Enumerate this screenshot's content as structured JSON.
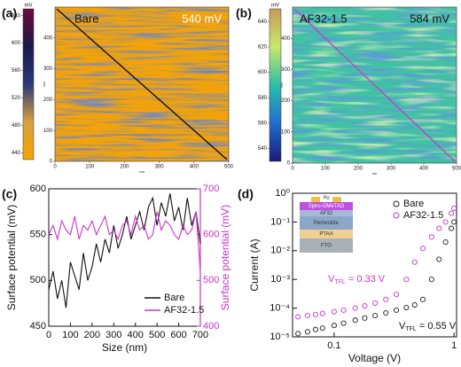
{
  "chart_data": [
    {
      "type": "image",
      "panel": "(a)",
      "label": "Bare",
      "annotation": "540 mV",
      "colorbar_label": "mV",
      "colorbar_ticks": [
        440,
        480,
        520,
        560,
        600,
        640
      ],
      "clim": [
        430,
        650
      ],
      "colormap": [
        "#f5a500",
        "#d8a040",
        "#2a3a7a",
        "#1a1a4a",
        "#6a0a3a"
      ],
      "map_color": "#f2a20a",
      "noise_color": "#2a3f8a",
      "line_color": "#111111",
      "xlim": [
        0,
        500
      ],
      "xticks": [
        0,
        100,
        200,
        300,
        400,
        500
      ],
      "ylim": [
        0,
        500
      ],
      "yticks": [
        0,
        100,
        200,
        300,
        400
      ],
      "xlabel": "nm",
      "ylabel": "nm"
    },
    {
      "type": "image",
      "panel": "(b)",
      "label": "AF32-1.5",
      "annotation": "584 mV",
      "colorbar_label": "mV",
      "colorbar_ticks": [
        540,
        560,
        580,
        600,
        620,
        640
      ],
      "clim": [
        530,
        650
      ],
      "colormap": [
        "#1a1a7a",
        "#1f6fcf",
        "#2bbfa8",
        "#c8e86a",
        "#c89a5a"
      ],
      "map_color": "#3fc4a0",
      "noise_color": "#2050c0",
      "line_color": "#c040c8",
      "xlim": [
        0,
        500
      ],
      "xticks": [
        0,
        100,
        200,
        300,
        400,
        500
      ],
      "ylim": [
        0,
        500
      ],
      "yticks": [
        0,
        100,
        200,
        300,
        400
      ],
      "xlabel": "nm",
      "ylabel": "nm"
    },
    {
      "type": "line",
      "panel": "(c)",
      "xlabel": "Size (nm)",
      "ylabel": "Surface potential (mV)",
      "y2label": "Surface potential (mV)",
      "y2color": "#cc33cc",
      "x": [
        0,
        20,
        40,
        60,
        80,
        100,
        120,
        140,
        160,
        180,
        200,
        220,
        240,
        260,
        280,
        300,
        320,
        340,
        360,
        380,
        400,
        420,
        440,
        460,
        480,
        500,
        520,
        540,
        560,
        580,
        600,
        620,
        640,
        660,
        680,
        700
      ],
      "xlim": [
        0,
        700
      ],
      "xticks": [
        0,
        100,
        200,
        300,
        400,
        500,
        600,
        700
      ],
      "ylim": [
        450,
        600
      ],
      "yticks": [
        450,
        500,
        550,
        600
      ],
      "y2lim": [
        400,
        700
      ],
      "y2ticks": [
        400,
        500,
        600,
        700
      ],
      "series": [
        {
          "name": "Bare",
          "color": "#111111",
          "values": [
            490,
            510,
            480,
            500,
            470,
            520,
            505,
            490,
            530,
            500,
            515,
            540,
            520,
            545,
            530,
            560,
            535,
            550,
            570,
            545,
            560,
            575,
            555,
            580,
            590,
            560,
            585,
            570,
            595,
            565,
            580,
            555,
            590,
            560,
            575,
            540
          ]
        },
        {
          "name": "AF32-1.5",
          "color": "#cc33cc",
          "axis": "y2",
          "values": [
            600,
            620,
            590,
            630,
            610,
            600,
            640,
            590,
            620,
            610,
            630,
            600,
            620,
            640,
            600,
            610,
            590,
            620,
            630,
            600,
            640,
            610,
            620,
            590,
            600,
            650,
            610,
            630,
            620,
            600,
            590,
            620,
            600,
            610,
            650,
            520
          ]
        }
      ]
    },
    {
      "type": "scatter",
      "panel": "(d)",
      "xlabel": "Voltage (V)",
      "ylabel": "Current (A)",
      "log": true,
      "x": [
        0.05,
        0.06,
        0.07,
        0.08,
        0.1,
        0.12,
        0.15,
        0.18,
        0.22,
        0.27,
        0.33,
        0.4,
        0.47,
        0.55,
        0.65,
        0.75,
        0.85,
        0.95,
        1.0
      ],
      "xlim": [
        0.045,
        1.05
      ],
      "xticks": [
        0.1,
        1
      ],
      "ylim": [
        1e-05,
        1
      ],
      "yticks": [
        {
          "value": 1e-05,
          "label": "10⁻⁵"
        },
        {
          "value": 0.0001,
          "label": "10⁻⁴"
        },
        {
          "value": 0.001,
          "label": "10⁻³"
        },
        {
          "value": 0.01,
          "label": "10⁻²"
        },
        {
          "value": 0.1,
          "label": "10⁻¹"
        },
        {
          "value": 1,
          "label": "10⁰"
        }
      ],
      "series": [
        {
          "name": "Bare",
          "color": "#222222",
          "values": [
            1.3e-05,
            1.5e-05,
            1.8e-05,
            2e-05,
            2.5e-05,
            3e-05,
            3.8e-05,
            4.5e-05,
            5.5e-05,
            6.8e-05,
            8.5e-05,
            0.000105,
            0.00013,
            0.0002,
            0.001,
            0.005,
            0.02,
            0.06,
            0.1
          ]
        },
        {
          "name": "AF32-1.5",
          "color": "#cc33cc",
          "values": [
            5e-05,
            5.5e-05,
            6e-05,
            6.5e-05,
            7.5e-05,
            8.5e-05,
            0.0001,
            0.00012,
            0.00015,
            0.0002,
            0.0003,
            0.001,
            0.004,
            0.012,
            0.03,
            0.06,
            0.1,
            0.2,
            0.3
          ]
        }
      ],
      "annotations": [
        {
          "text": "V",
          "sub": "TFL",
          "rest": " = 0.33 V",
          "color": "#cc33cc"
        },
        {
          "text": "V",
          "sub": "TFL",
          "rest": " = 0.55 V",
          "color": "#111111"
        }
      ],
      "stack": [
        "Au",
        "Spiro-OMeTAD",
        "AF32",
        "Perovskite",
        "PTAA",
        "FTO"
      ]
    }
  ]
}
